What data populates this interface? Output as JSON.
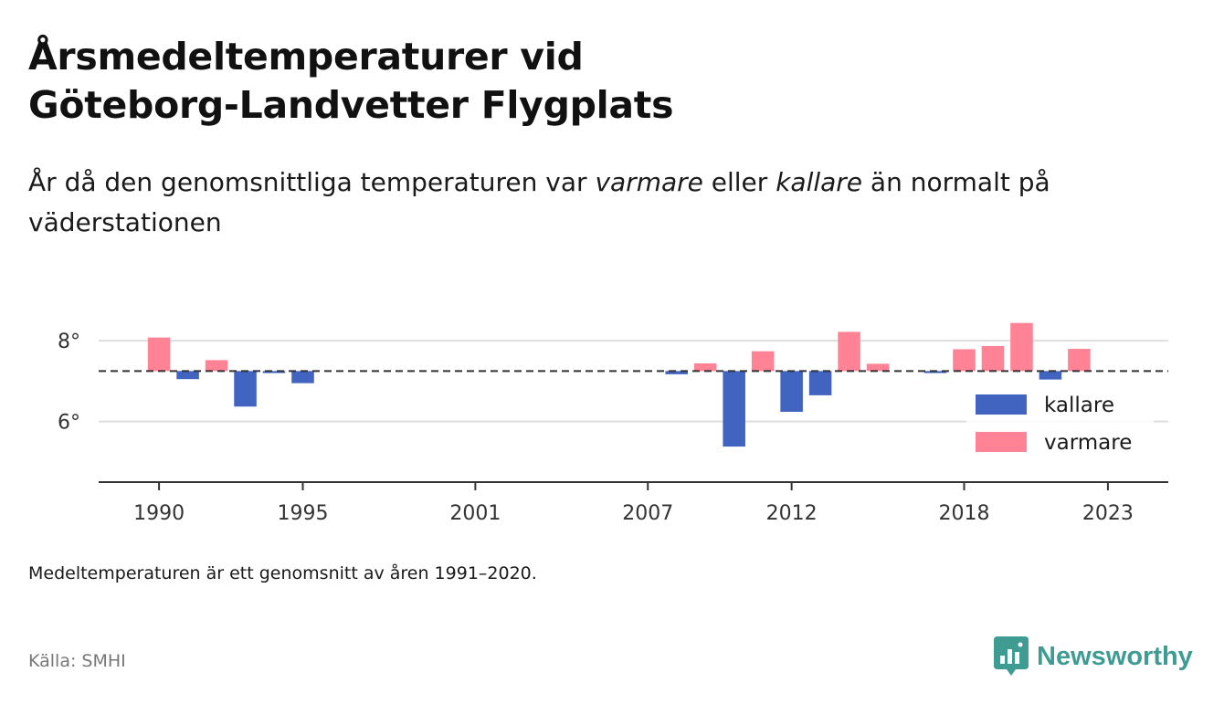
{
  "header": {
    "title_line1": "Årsmedeltemperaturer vid",
    "title_line2": "Göteborg-Landvetter Flygplats",
    "subtitle_part1": "År då den genomsnittliga temperaturen var ",
    "subtitle_em1": "varmare",
    "subtitle_part2": " eller ",
    "subtitle_em2": "kallare",
    "subtitle_part3": " än normalt på väderstationen"
  },
  "chart_data": {
    "type": "bar",
    "baseline": 7.25,
    "ylim": [
      4.5,
      8.75
    ],
    "xlim": [
      1987.9,
      2025.1
    ],
    "yticks": [
      6,
      8
    ],
    "ytick_labels": [
      "6°",
      "8°"
    ],
    "xticks": [
      1990,
      1995,
      2001,
      2007,
      2012,
      2018,
      2023
    ],
    "xtick_labels": [
      "1990",
      "1995",
      "2001",
      "2007",
      "2012",
      "2018",
      "2023"
    ],
    "grid": true,
    "legend_position": "right",
    "legend": [
      {
        "name": "kallare",
        "color": "#4264c1"
      },
      {
        "name": "varmare",
        "color": "#ff8395"
      }
    ],
    "bars": [
      {
        "year": 1990,
        "value": 8.08
      },
      {
        "year": 1991,
        "value": 7.05
      },
      {
        "year": 1992,
        "value": 7.52
      },
      {
        "year": 1993,
        "value": 6.37
      },
      {
        "year": 1994,
        "value": 7.2
      },
      {
        "year": 1995,
        "value": 6.95
      },
      {
        "year": 2008,
        "value": 7.17
      },
      {
        "year": 2009,
        "value": 7.44
      },
      {
        "year": 2010,
        "value": 5.38
      },
      {
        "year": 2011,
        "value": 7.74
      },
      {
        "year": 2012,
        "value": 6.24
      },
      {
        "year": 2013,
        "value": 6.65
      },
      {
        "year": 2014,
        "value": 8.22
      },
      {
        "year": 2015,
        "value": 7.43
      },
      {
        "year": 2017,
        "value": 7.2
      },
      {
        "year": 2018,
        "value": 7.79
      },
      {
        "year": 2019,
        "value": 7.87
      },
      {
        "year": 2020,
        "value": 8.44
      },
      {
        "year": 2021,
        "value": 7.04
      },
      {
        "year": 2022,
        "value": 7.8
      }
    ]
  },
  "footer": {
    "note": "Medeltemperaturen är ett genomsnitt av åren 1991–2020.",
    "source": "Källa: SMHI",
    "brand": "Newsworthy"
  },
  "colors": {
    "cold": "#4264c1",
    "warm": "#ff8395",
    "brand": "#3f9c93",
    "grid": "#dddddd",
    "axis": "#333333"
  }
}
